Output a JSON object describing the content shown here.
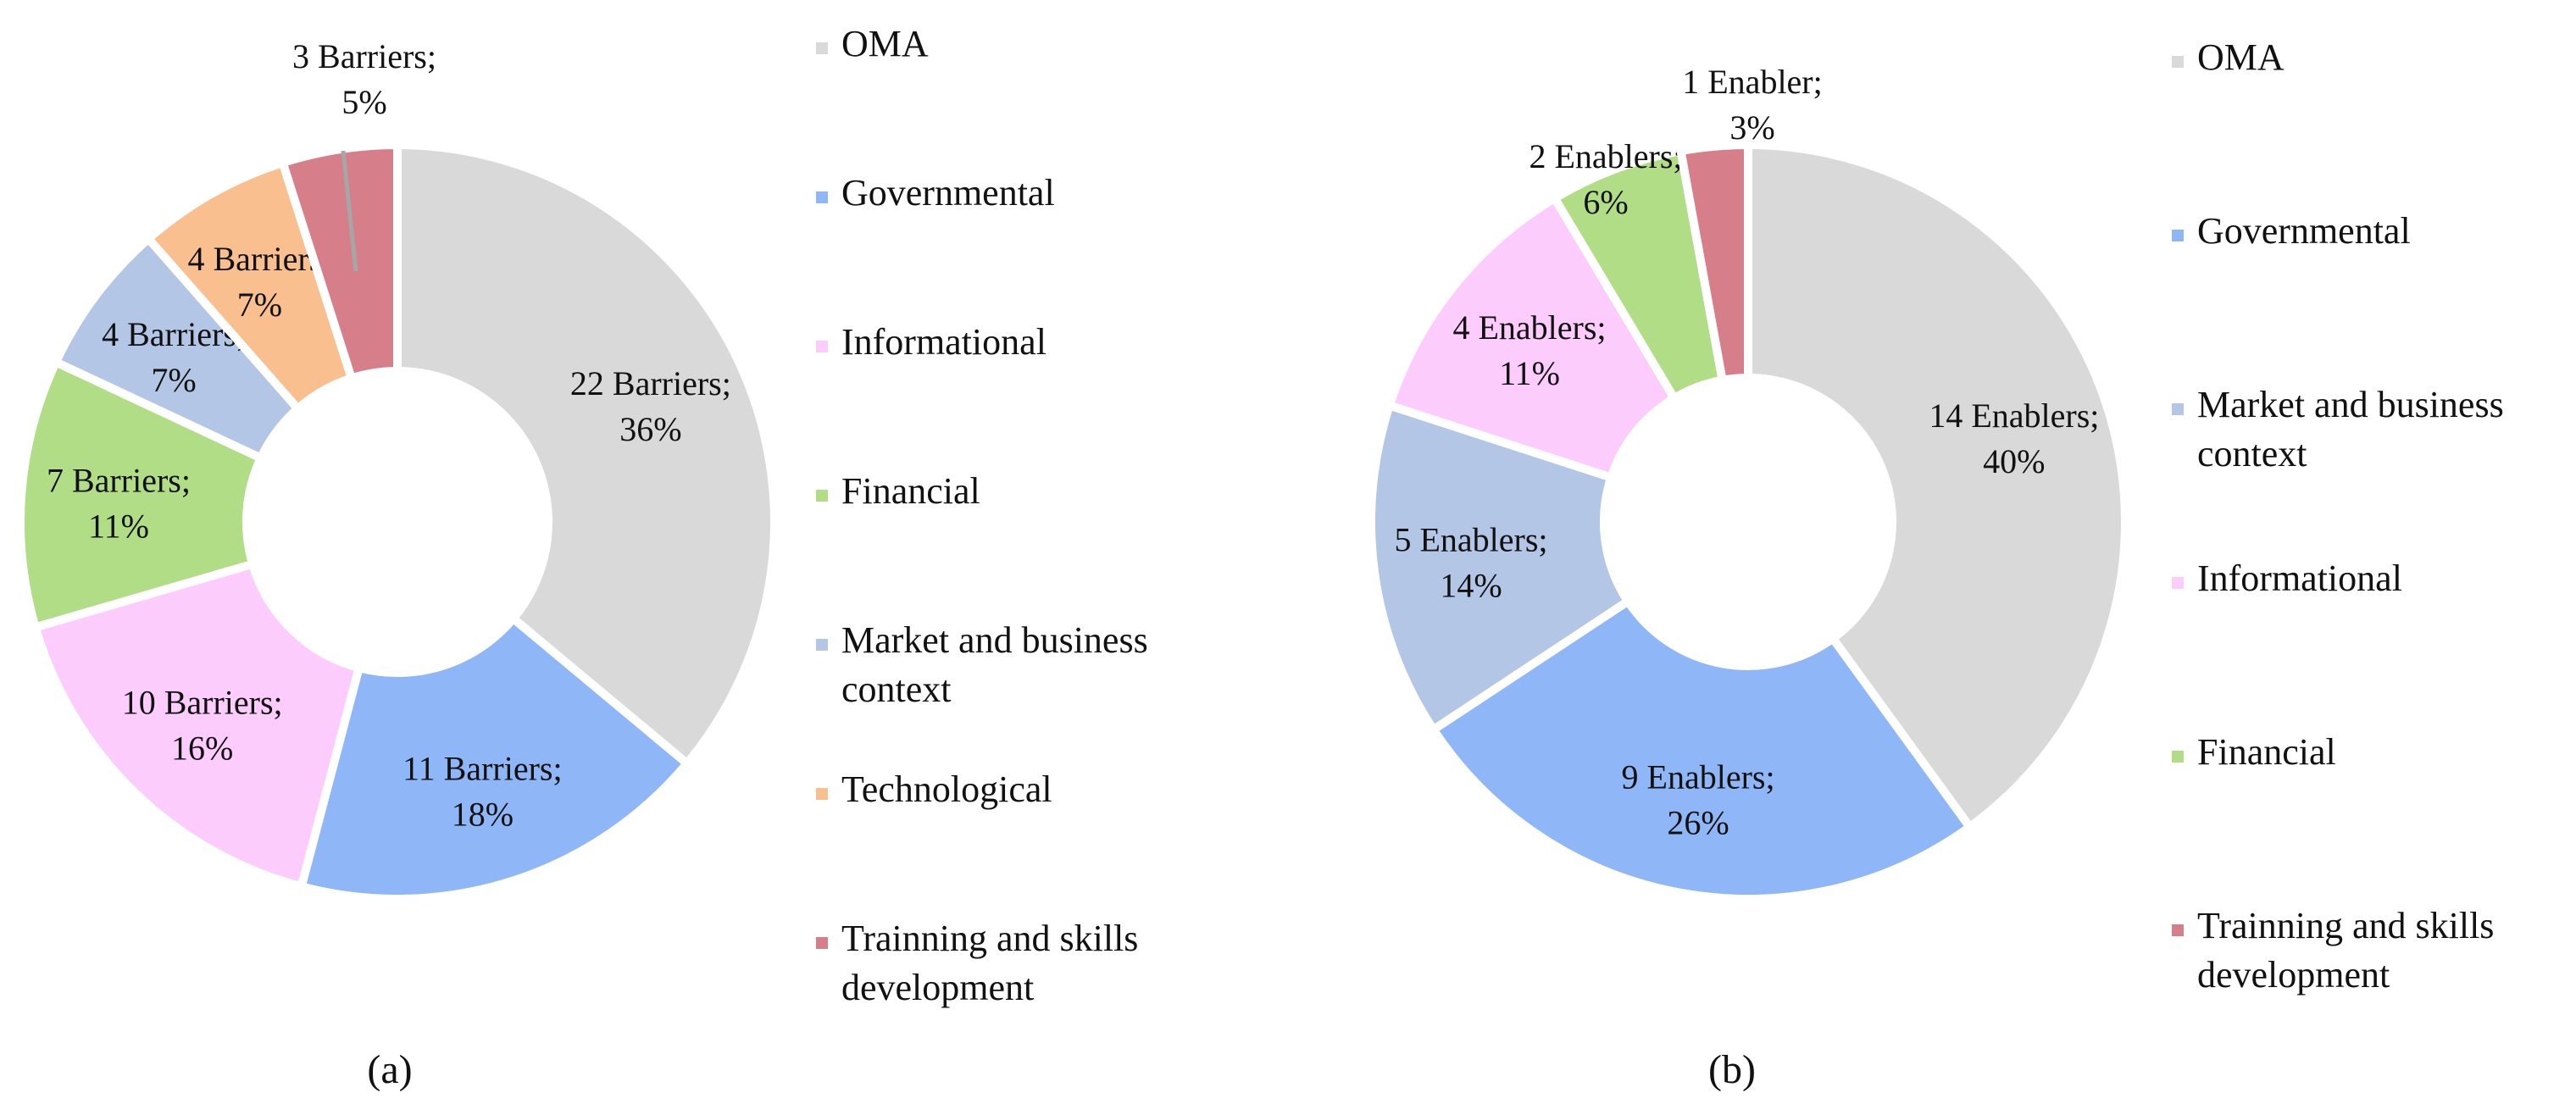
{
  "colors": {
    "OMA": "#d9d9d9",
    "Governmental": "#8fb7f7",
    "Informational": "#fccdfc",
    "Financial": "#b0dd85",
    "Market and business context": "#b3c6e6",
    "Technological": "#f9bf8f",
    "Trainning and skills development": "#d67f8b"
  },
  "chart_data": [
    {
      "type": "pie",
      "subtype": "donut",
      "caption": "(a)",
      "legend_position": "right",
      "legend": [
        {
          "name": "OMA",
          "lines": [
            "OMA"
          ]
        },
        {
          "name": "Governmental",
          "lines": [
            "Governmental"
          ]
        },
        {
          "name": "Informational",
          "lines": [
            "Informational"
          ]
        },
        {
          "name": "Financial",
          "lines": [
            "Financial"
          ]
        },
        {
          "name": "Market and business context",
          "lines": [
            "Market and business",
            "context"
          ]
        },
        {
          "name": "Technological",
          "lines": [
            "Technological"
          ]
        },
        {
          "name": "Trainning and skills development",
          "lines": [
            "Trainning and skills",
            "development"
          ]
        }
      ],
      "slices": [
        {
          "category": "OMA",
          "value": 22,
          "percent": 36,
          "label": [
            "22 Barriers;",
            "36%"
          ]
        },
        {
          "category": "Governmental",
          "value": 11,
          "percent": 18,
          "label": [
            "11 Barriers;",
            "18%"
          ]
        },
        {
          "category": "Informational",
          "value": 10,
          "percent": 16,
          "label": [
            "10 Barriers;",
            "16%"
          ]
        },
        {
          "category": "Financial",
          "value": 7,
          "percent": 11,
          "label": [
            "7 Barriers;",
            "11%"
          ]
        },
        {
          "category": "Market and business context",
          "value": 4,
          "percent": 7,
          "label": [
            "4 Barriers;",
            "7%"
          ]
        },
        {
          "category": "Technological",
          "value": 4,
          "percent": 7,
          "label": [
            "4 Barriers;",
            "7%"
          ]
        },
        {
          "category": "Trainning and skills development",
          "value": 3,
          "percent": 5,
          "label": [
            "3 Barriers;",
            "5%"
          ],
          "leader_line": true
        }
      ]
    },
    {
      "type": "pie",
      "subtype": "donut",
      "caption": "(b)",
      "legend_position": "right",
      "legend": [
        {
          "name": "OMA",
          "lines": [
            "OMA"
          ]
        },
        {
          "name": "Governmental",
          "lines": [
            "Governmental"
          ]
        },
        {
          "name": "Market and business context",
          "lines": [
            "Market and business",
            "context"
          ]
        },
        {
          "name": "Informational",
          "lines": [
            "Informational"
          ]
        },
        {
          "name": "Financial",
          "lines": [
            "Financial"
          ]
        },
        {
          "name": "Trainning and skills development",
          "lines": [
            "Trainning and skills",
            "development"
          ]
        }
      ],
      "slices": [
        {
          "category": "OMA",
          "value": 14,
          "percent": 40,
          "label": [
            "14 Enablers;",
            "40%"
          ]
        },
        {
          "category": "Governmental",
          "value": 9,
          "percent": 26,
          "label": [
            "9 Enablers;",
            "26%"
          ]
        },
        {
          "category": "Market and business context",
          "value": 5,
          "percent": 14,
          "label": [
            "5 Enablers;",
            "14%"
          ]
        },
        {
          "category": "Informational",
          "value": 4,
          "percent": 11,
          "label": [
            "4 Enablers;",
            "11%"
          ]
        },
        {
          "category": "Financial",
          "value": 2,
          "percent": 6,
          "label": [
            "2 Enablers;",
            "6%"
          ]
        },
        {
          "category": "Trainning and skills development",
          "value": 1,
          "percent": 3,
          "label": [
            "1 Enabler;",
            "3%"
          ]
        }
      ]
    }
  ]
}
